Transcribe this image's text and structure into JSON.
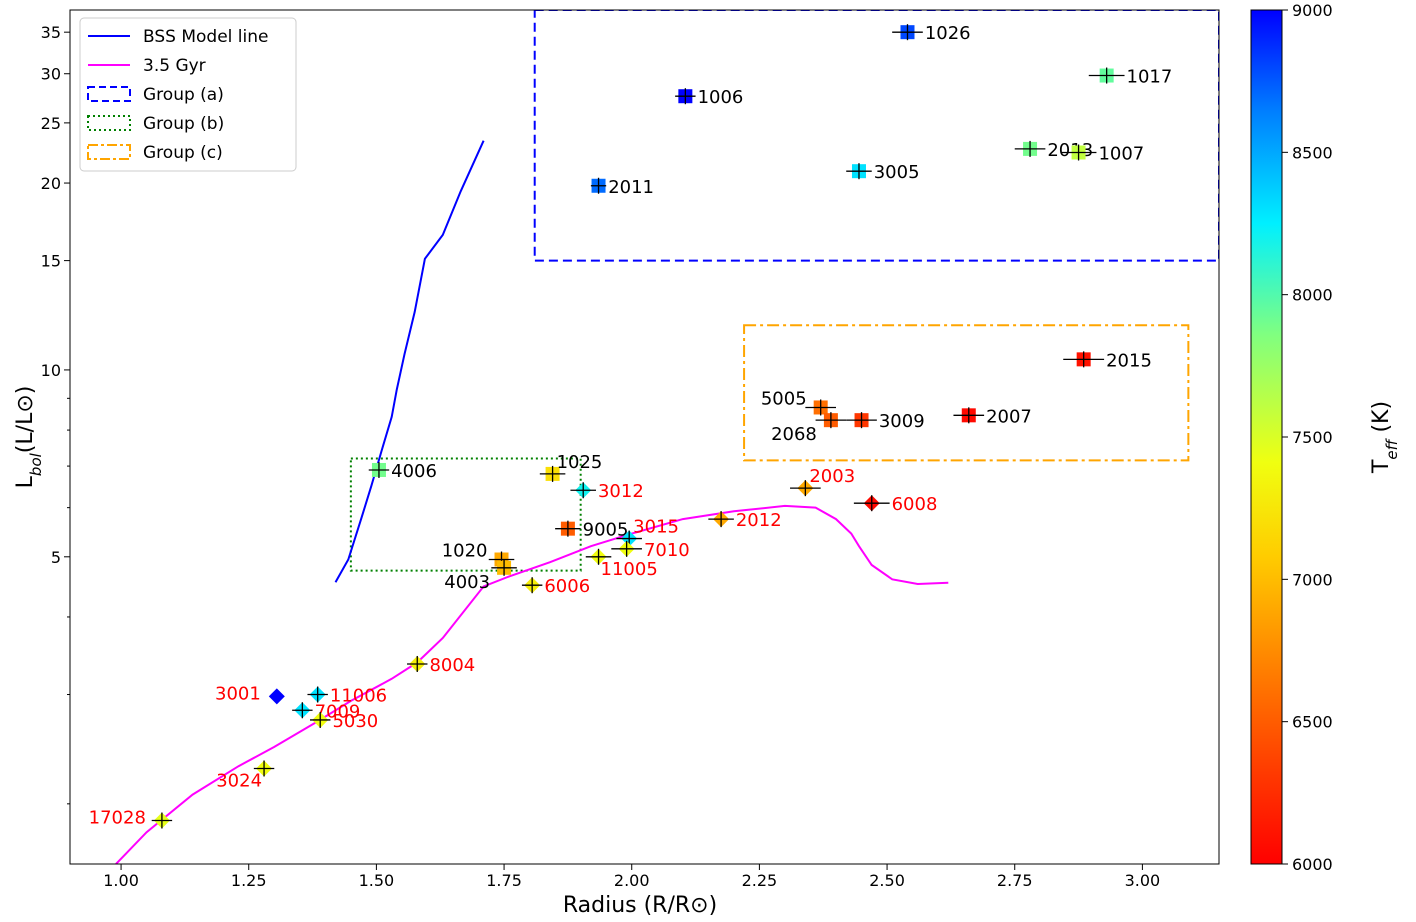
{
  "chart_data": {
    "type": "scatter",
    "xlabel": "Radius (R/R⊙)",
    "ylabel": "L",
    "ylabel_sub": "bol",
    "ylabel_tail": "(L/L⊙)",
    "colorbar_label": "T",
    "colorbar_label_sub": "eff",
    "colorbar_label_tail": " (K)",
    "xlim": [
      0.9,
      3.15
    ],
    "ylim": [
      1.6,
      38
    ],
    "y_scale": "log",
    "x_ticks": [
      "1.00",
      "1.25",
      "1.50",
      "1.75",
      "2.00",
      "2.25",
      "2.50",
      "2.75",
      "3.00"
    ],
    "y_ticks": [
      "5",
      "10",
      "15",
      "20",
      "25",
      "30",
      "35"
    ],
    "colorbar_range": [
      6000,
      9000
    ],
    "colorbar_ticks": [
      "6000",
      "6500",
      "7000",
      "7500",
      "8000",
      "8500",
      "9000"
    ],
    "legend_placement": "top-left",
    "legend": [
      {
        "label": "BSS Model line",
        "color": "#0000ff",
        "style": "solid"
      },
      {
        "label": "3.5 Gyr",
        "color": "#ff00ff",
        "style": "solid"
      },
      {
        "label": "Group (a)",
        "color": "#0000ff",
        "style": "dashed"
      },
      {
        "label": "Group (b)",
        "color": "#008000",
        "style": "dotted"
      },
      {
        "label": "Group (c)",
        "color": "#ffa500",
        "style": "dashdot"
      }
    ],
    "bss_model_line": {
      "x": [
        1.42,
        1.445,
        1.47,
        1.49,
        1.51,
        1.53,
        1.54,
        1.555,
        1.575,
        1.595,
        1.63,
        1.665,
        1.71
      ],
      "y": [
        4.55,
        4.95,
        5.75,
        6.5,
        7.4,
        8.4,
        9.3,
        10.6,
        12.4,
        15.1,
        16.5,
        19.4,
        23.4
      ]
    },
    "isochrone_3_5_gyr": {
      "x": [
        0.99,
        1.05,
        1.14,
        1.23,
        1.3,
        1.38,
        1.45,
        1.53,
        1.58,
        1.63,
        1.71,
        1.76,
        1.84,
        1.92,
        2.0,
        2.1,
        2.2,
        2.3,
        2.36,
        2.4,
        2.43,
        2.445,
        2.47,
        2.51,
        2.56,
        2.62
      ],
      "y": [
        1.6,
        1.8,
        2.07,
        2.3,
        2.47,
        2.7,
        2.93,
        3.18,
        3.38,
        3.7,
        4.48,
        4.65,
        4.9,
        5.2,
        5.45,
        5.75,
        5.92,
        6.04,
        6.0,
        5.75,
        5.45,
        5.2,
        4.85,
        4.6,
        4.52,
        4.54
      ]
    },
    "groups": [
      {
        "name": "Group (a)",
        "x": [
          1.81,
          3.15
        ],
        "y": [
          15,
          38
        ]
      },
      {
        "name": "Group (b)",
        "x": [
          1.45,
          1.9
        ],
        "y": [
          4.75,
          7.2
        ]
      },
      {
        "name": "Group (c)",
        "x": [
          2.22,
          3.09
        ],
        "y": [
          7.15,
          11.8
        ]
      }
    ],
    "series": [
      {
        "id": "1026",
        "x": 2.54,
        "y": 35.0,
        "teff": 8800,
        "marker": "square",
        "xerr": 0.03,
        "label_color": "#000000",
        "anchor": "right"
      },
      {
        "id": "1017",
        "x": 2.93,
        "y": 29.8,
        "teff": 7950,
        "marker": "square",
        "xerr": 0.035,
        "label_color": "#000000",
        "anchor": "right"
      },
      {
        "id": "1006",
        "x": 2.105,
        "y": 27.6,
        "teff": 9000,
        "marker": "square",
        "xerr": 0.02,
        "label_color": "#000000",
        "anchor": "right"
      },
      {
        "id": "2013",
        "x": 2.78,
        "y": 22.7,
        "teff": 7900,
        "marker": "square",
        "xerr": 0.03,
        "label_color": "#000000",
        "anchor": "right"
      },
      {
        "id": "1007",
        "x": 2.875,
        "y": 22.4,
        "teff": 7600,
        "marker": "square",
        "xerr": 0.035,
        "label_color": "#000000",
        "anchor": "right"
      },
      {
        "id": "3005",
        "x": 2.445,
        "y": 20.9,
        "teff": 8300,
        "marker": "square",
        "xerr": 0.025,
        "label_color": "#000000",
        "anchor": "right"
      },
      {
        "id": "2011",
        "x": 1.935,
        "y": 19.8,
        "teff": 8700,
        "marker": "square",
        "xerr": 0.015,
        "label_color": "#000000",
        "anchor": "right"
      },
      {
        "id": "2015",
        "x": 2.885,
        "y": 10.4,
        "teff": 6100,
        "marker": "square",
        "xerr": 0.04,
        "label_color": "#000000",
        "anchor": "right"
      },
      {
        "id": "5005",
        "x": 2.37,
        "y": 8.7,
        "teff": 6600,
        "marker": "square",
        "xerr": 0.03,
        "label_color": "#000000",
        "anchor": "left-up"
      },
      {
        "id": "2068",
        "x": 2.39,
        "y": 8.3,
        "teff": 6500,
        "marker": "square",
        "xerr": 0.03,
        "label_color": "#000000",
        "anchor": "left-down"
      },
      {
        "id": "3009",
        "x": 2.45,
        "y": 8.3,
        "teff": 6300,
        "marker": "square",
        "xerr": 0.03,
        "label_color": "#000000",
        "anchor": "right"
      },
      {
        "id": "2007",
        "x": 2.66,
        "y": 8.45,
        "teff": 6050,
        "marker": "square",
        "xerr": 0.03,
        "label_color": "#000000",
        "anchor": "right"
      },
      {
        "id": "4006",
        "x": 1.505,
        "y": 6.9,
        "teff": 7900,
        "marker": "square",
        "xerr": 0.02,
        "label_color": "#000000",
        "anchor": "right"
      },
      {
        "id": "1025",
        "x": 1.845,
        "y": 6.8,
        "teff": 7200,
        "marker": "square",
        "xerr": 0.025,
        "label_color": "#000000",
        "anchor": "right-up"
      },
      {
        "id": "3012",
        "x": 1.905,
        "y": 6.4,
        "teff": 8200,
        "marker": "diamond",
        "xerr": 0.025,
        "label_color": "#ff0000",
        "anchor": "right"
      },
      {
        "id": "2003",
        "x": 2.34,
        "y": 6.45,
        "teff": 6900,
        "marker": "diamond",
        "xerr": 0.03,
        "label_color": "#ff0000",
        "anchor": "right-up"
      },
      {
        "id": "6008",
        "x": 2.47,
        "y": 6.1,
        "teff": 6050,
        "marker": "diamond",
        "xerr": 0.035,
        "label_color": "#ff0000",
        "anchor": "right"
      },
      {
        "id": "2012",
        "x": 2.175,
        "y": 5.75,
        "teff": 6900,
        "marker": "diamond",
        "xerr": 0.025,
        "label_color": "#ff0000",
        "anchor": "right"
      },
      {
        "id": "9005",
        "x": 1.875,
        "y": 5.55,
        "teff": 6500,
        "marker": "square",
        "xerr": 0.025,
        "label_color": "#000000",
        "anchor": "right"
      },
      {
        "id": "3015",
        "x": 1.995,
        "y": 5.35,
        "teff": 8300,
        "marker": "diamond",
        "xerr": 0.025,
        "label_color": "#ff0000",
        "anchor": "right-up"
      },
      {
        "id": "7010",
        "x": 1.99,
        "y": 5.15,
        "teff": 7400,
        "marker": "diamond",
        "xerr": 0.03,
        "label_color": "#ff0000",
        "anchor": "right"
      },
      {
        "id": "11005",
        "x": 1.935,
        "y": 5.0,
        "teff": 7400,
        "marker": "diamond",
        "xerr": 0.025,
        "label_color": "#ff0000",
        "anchor": "right-down"
      },
      {
        "id": "1020",
        "x": 1.745,
        "y": 4.95,
        "teff": 6900,
        "marker": "square",
        "xerr": 0.025,
        "label_color": "#000000",
        "anchor": "left-up"
      },
      {
        "id": "4003",
        "x": 1.75,
        "y": 4.8,
        "teff": 7000,
        "marker": "square",
        "xerr": 0.025,
        "label_color": "#000000",
        "anchor": "left-down"
      },
      {
        "id": "6006",
        "x": 1.805,
        "y": 4.5,
        "teff": 7300,
        "marker": "diamond",
        "xerr": 0.02,
        "label_color": "#ff0000",
        "anchor": "right"
      },
      {
        "id": "8004",
        "x": 1.58,
        "y": 3.36,
        "teff": 7300,
        "marker": "diamond",
        "xerr": 0.02,
        "label_color": "#ff0000",
        "anchor": "right"
      },
      {
        "id": "3001",
        "x": 1.305,
        "y": 2.98,
        "teff": 9000,
        "marker": "diamond",
        "xerr": 0.0,
        "label_color": "#ff0000",
        "anchor": "left"
      },
      {
        "id": "11006",
        "x": 1.385,
        "y": 3.0,
        "teff": 8300,
        "marker": "diamond",
        "xerr": 0.02,
        "label_color": "#ff0000",
        "anchor": "right"
      },
      {
        "id": "7009",
        "x": 1.355,
        "y": 2.83,
        "teff": 8300,
        "marker": "diamond",
        "xerr": 0.02,
        "label_color": "#ff0000",
        "anchor": "right"
      },
      {
        "id": "5030",
        "x": 1.39,
        "y": 2.73,
        "teff": 7400,
        "marker": "diamond",
        "xerr": 0.02,
        "label_color": "#ff0000",
        "anchor": "right"
      },
      {
        "id": "3024",
        "x": 1.28,
        "y": 2.28,
        "teff": 7400,
        "marker": "diamond",
        "xerr": 0.02,
        "label_color": "#ff0000",
        "anchor": "left-down"
      },
      {
        "id": "17028",
        "x": 1.08,
        "y": 1.88,
        "teff": 7450,
        "marker": "diamond",
        "xerr": 0.02,
        "label_color": "#ff0000",
        "anchor": "left"
      }
    ]
  }
}
